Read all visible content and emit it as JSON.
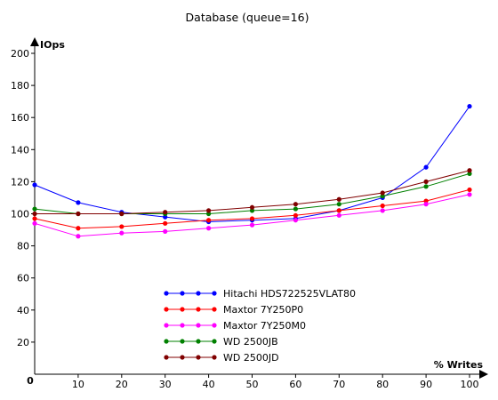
{
  "chart_data": {
    "type": "line",
    "title": "Database (queue=16)",
    "ylabel": "IOps",
    "xlabel": "% Writes",
    "x": [
      0,
      10,
      20,
      30,
      40,
      50,
      60,
      70,
      80,
      90,
      100
    ],
    "xticks": [
      "10",
      "20",
      "30",
      "40",
      "50",
      "60",
      "70",
      "80",
      "90",
      "100"
    ],
    "yticks": [
      "20",
      "40",
      "60",
      "80",
      "100",
      "120",
      "140",
      "160",
      "180",
      "200"
    ],
    "origin_label": "0",
    "xlim": [
      0,
      100
    ],
    "ylim": [
      0,
      200
    ],
    "grid": false,
    "legend_position": "bottom-center",
    "series": [
      {
        "name": "Hitachi HDS722525VLAT80",
        "color": "#0000ff",
        "values": [
          118,
          107,
          101,
          98,
          95,
          96,
          97,
          102,
          110,
          129,
          167
        ]
      },
      {
        "name": "Maxtor 7Y250P0",
        "color": "#ff0000",
        "values": [
          97,
          91,
          92,
          94,
          96,
          97,
          99,
          102,
          105,
          108,
          115
        ]
      },
      {
        "name": "Maxtor 7Y250M0",
        "color": "#ff00ff",
        "values": [
          94,
          86,
          88,
          89,
          91,
          93,
          96,
          99,
          102,
          106,
          112
        ]
      },
      {
        "name": "WD 2500JB",
        "color": "#008000",
        "values": [
          103,
          100,
          100,
          100,
          100,
          102,
          103,
          106,
          111,
          117,
          125
        ]
      },
      {
        "name": "WD 2500JD",
        "color": "#800000",
        "values": [
          100,
          100,
          100,
          101,
          102,
          104,
          106,
          109,
          113,
          120,
          127
        ]
      }
    ]
  }
}
